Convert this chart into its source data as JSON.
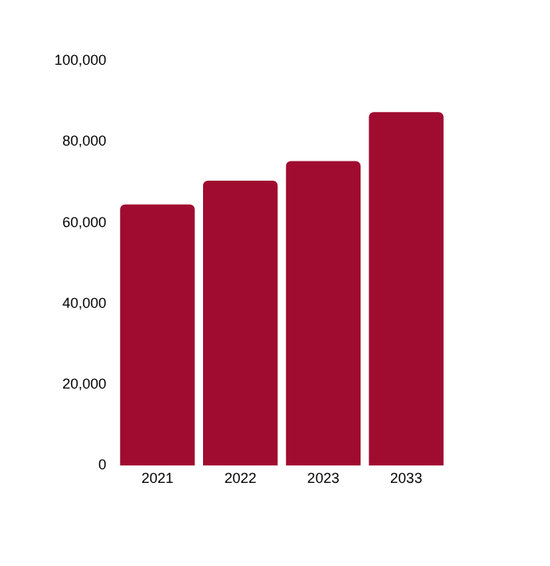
{
  "chart_data": {
    "type": "bar",
    "categories": [
      "2021",
      "2022",
      "2023",
      "2033"
    ],
    "values": [
      64500,
      70400,
      75200,
      87300
    ],
    "color": "#a00c30",
    "ylim": [
      0,
      100000
    ],
    "yticks": [
      0,
      {
        "value": 20000,
        "label": "20,000"
      },
      {
        "value": 40000,
        "label": "40,000"
      },
      {
        "value": 60000,
        "label": "60,000"
      },
      {
        "value": 80000,
        "label": "80,000"
      },
      {
        "value": 100000,
        "label": "100,000"
      }
    ],
    "grid": false,
    "legend": false
  }
}
